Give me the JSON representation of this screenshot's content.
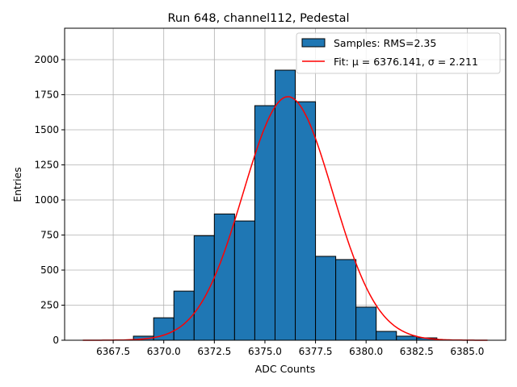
{
  "chart_data": {
    "type": "bar",
    "title": "Run 648, channel112, Pedestal",
    "xlabel": "ADC Counts",
    "ylabel": "Entries",
    "xlim": [
      6365.1,
      6386.9
    ],
    "ylim": [
      0,
      2224
    ],
    "grid": true,
    "legend_position": "top-right",
    "x_ticks": [
      6367.5,
      6370.0,
      6372.5,
      6375.0,
      6377.5,
      6380.0,
      6382.5,
      6385.0
    ],
    "x_tick_labels": [
      "6367.5",
      "6370.0",
      "6372.5",
      "6375.0",
      "6377.5",
      "6380.0",
      "6382.5",
      "6385.0"
    ],
    "y_ticks": [
      0,
      250,
      500,
      750,
      1000,
      1250,
      1500,
      1750,
      2000
    ],
    "y_tick_labels": [
      "0",
      "250",
      "500",
      "750",
      "1000",
      "1250",
      "1500",
      "1750",
      "2000"
    ],
    "bin_edges": [
      6368.5,
      6369.5,
      6370.5,
      6371.5,
      6372.5,
      6373.5,
      6374.5,
      6375.5,
      6376.5,
      6377.5,
      6378.5,
      6379.5,
      6380.5,
      6381.5,
      6382.5,
      6383.5
    ],
    "values": [
      29,
      160,
      350,
      745,
      900,
      850,
      1672,
      1925,
      1700,
      598,
      575,
      236,
      63,
      29,
      17
    ],
    "fit": {
      "mu": 6376.141,
      "sigma": 2.211,
      "amplitude": 1736,
      "x_range": [
        6366,
        6386
      ]
    },
    "legend": [
      {
        "label": "Samples: RMS=2.35",
        "kind": "patch",
        "color": "#1f77b4"
      },
      {
        "label": "Fit: μ = 6376.141, σ = 2.211",
        "kind": "line",
        "color": "#ff0000"
      }
    ]
  }
}
